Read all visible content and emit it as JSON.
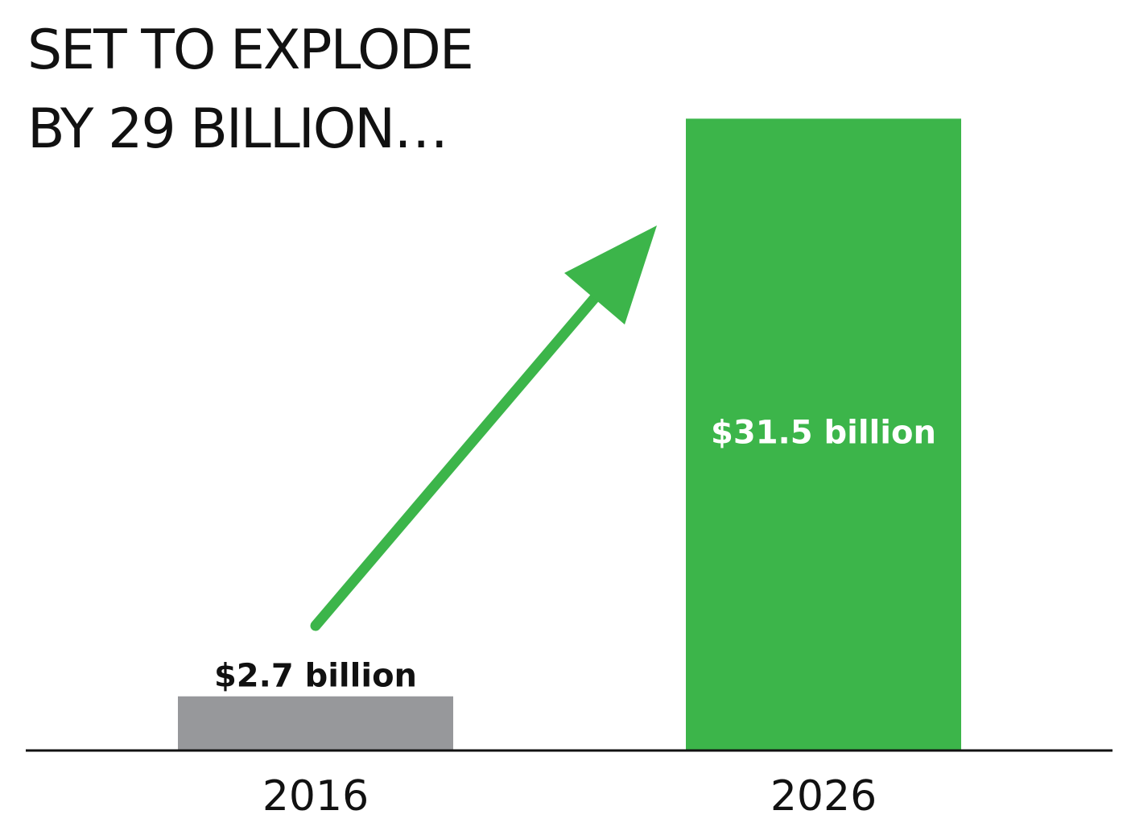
{
  "chart_data": {
    "type": "bar",
    "title_lines": [
      "SET TO EXPLODE",
      "BY 29 BILLION…"
    ],
    "categories": [
      "2016",
      "2026"
    ],
    "values": [
      2.7,
      31.5
    ],
    "value_labels": [
      "$2.7 billion",
      "$31.5 billion"
    ],
    "bar_colors": [
      "#97989b",
      "#3cb54a"
    ],
    "value_label_colors": [
      "#111111",
      "#ffffff"
    ],
    "value_label_position": [
      "above",
      "inside"
    ],
    "annotation": {
      "type": "arrow",
      "color": "#3cb54a",
      "direction": "up-right"
    },
    "xlabel": "",
    "ylabel": "",
    "ylim": [
      0,
      33
    ],
    "grid": false,
    "legend": false
  }
}
